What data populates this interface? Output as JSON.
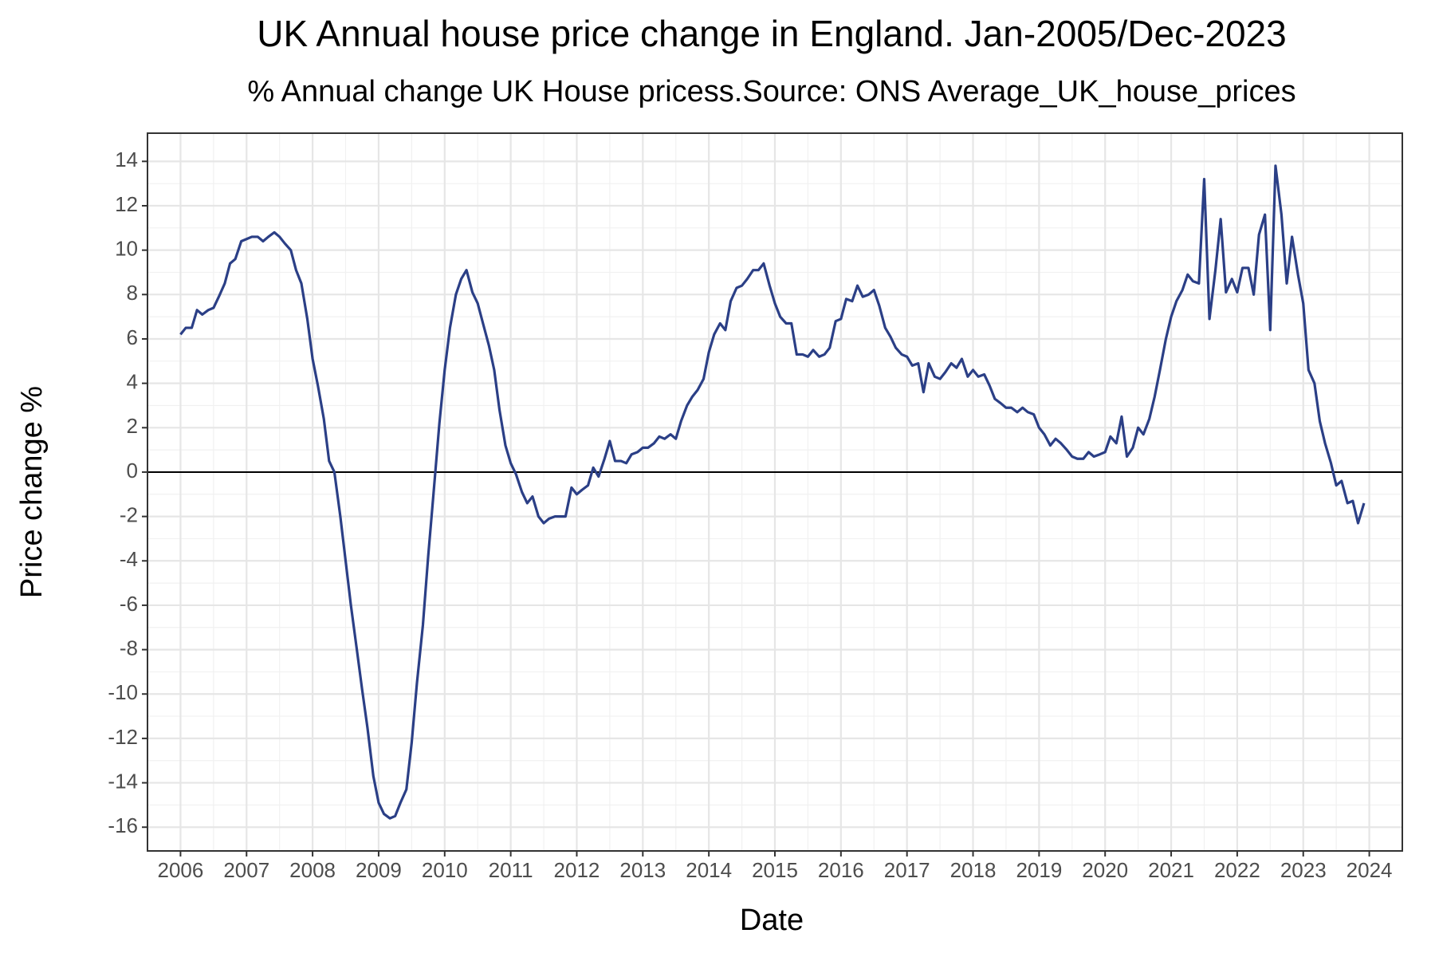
{
  "chart_data": {
    "type": "line",
    "title": "UK Annual house price change in England. Jan-2005/Dec-2023",
    "subtitle": "% Annual change UK House pricess.Source: ONS Average_UK_house_prices",
    "x_label": "Date",
    "y_label": "Price change %",
    "x": [
      2006.0,
      2006.08,
      2006.17,
      2006.25,
      2006.33,
      2006.42,
      2006.5,
      2006.58,
      2006.67,
      2006.75,
      2006.83,
      2006.92,
      2007.0,
      2007.08,
      2007.17,
      2007.25,
      2007.33,
      2007.42,
      2007.5,
      2007.58,
      2007.67,
      2007.75,
      2007.83,
      2007.92,
      2008.0,
      2008.08,
      2008.17,
      2008.25,
      2008.33,
      2008.42,
      2008.5,
      2008.58,
      2008.67,
      2008.75,
      2008.83,
      2008.92,
      2009.0,
      2009.08,
      2009.17,
      2009.25,
      2009.33,
      2009.42,
      2009.5,
      2009.58,
      2009.67,
      2009.75,
      2009.83,
      2009.92,
      2010.0,
      2010.08,
      2010.17,
      2010.25,
      2010.33,
      2010.42,
      2010.5,
      2010.58,
      2010.67,
      2010.75,
      2010.83,
      2010.92,
      2011.0,
      2011.08,
      2011.17,
      2011.25,
      2011.33,
      2011.42,
      2011.5,
      2011.58,
      2011.67,
      2011.75,
      2011.83,
      2011.92,
      2012.0,
      2012.08,
      2012.17,
      2012.25,
      2012.33,
      2012.42,
      2012.5,
      2012.58,
      2012.67,
      2012.75,
      2012.83,
      2012.92,
      2013.0,
      2013.08,
      2013.17,
      2013.25,
      2013.33,
      2013.42,
      2013.5,
      2013.58,
      2013.67,
      2013.75,
      2013.83,
      2013.92,
      2014.0,
      2014.08,
      2014.17,
      2014.25,
      2014.33,
      2014.42,
      2014.5,
      2014.58,
      2014.67,
      2014.75,
      2014.83,
      2014.92,
      2015.0,
      2015.08,
      2015.17,
      2015.25,
      2015.33,
      2015.42,
      2015.5,
      2015.58,
      2015.67,
      2015.75,
      2015.83,
      2015.92,
      2016.0,
      2016.08,
      2016.17,
      2016.25,
      2016.33,
      2016.42,
      2016.5,
      2016.58,
      2016.67,
      2016.75,
      2016.83,
      2016.92,
      2017.0,
      2017.08,
      2017.17,
      2017.25,
      2017.33,
      2017.42,
      2017.5,
      2017.58,
      2017.67,
      2017.75,
      2017.83,
      2017.92,
      2018.0,
      2018.08,
      2018.17,
      2018.25,
      2018.33,
      2018.42,
      2018.5,
      2018.58,
      2018.67,
      2018.75,
      2018.83,
      2018.92,
      2019.0,
      2019.08,
      2019.17,
      2019.25,
      2019.33,
      2019.42,
      2019.5,
      2019.58,
      2019.67,
      2019.75,
      2019.83,
      2019.92,
      2020.0,
      2020.08,
      2020.17,
      2020.25,
      2020.33,
      2020.42,
      2020.5,
      2020.58,
      2020.67,
      2020.75,
      2020.83,
      2020.92,
      2021.0,
      2021.08,
      2021.17,
      2021.25,
      2021.33,
      2021.42,
      2021.5,
      2021.58,
      2021.67,
      2021.75,
      2021.83,
      2021.92,
      2022.0,
      2022.08,
      2022.17,
      2022.25,
      2022.33,
      2022.42,
      2022.5,
      2022.58,
      2022.67,
      2022.75,
      2022.83,
      2022.92,
      2023.0,
      2023.08,
      2023.17,
      2023.25,
      2023.33,
      2023.42,
      2023.5,
      2023.58,
      2023.67,
      2023.75,
      2023.83,
      2023.92
    ],
    "series": [
      {
        "color": "#2b3f86",
        "values": [
          6.2,
          6.5,
          6.5,
          7.3,
          7.1,
          7.3,
          7.4,
          7.9,
          8.5,
          9.4,
          9.6,
          10.4,
          10.5,
          10.6,
          10.6,
          10.4,
          10.6,
          10.8,
          10.6,
          10.3,
          10.0,
          9.1,
          8.5,
          6.9,
          5.1,
          3.9,
          2.4,
          0.5,
          0.0,
          -2.0,
          -4.0,
          -6.0,
          -8.0,
          -9.8,
          -11.5,
          -13.7,
          -14.9,
          -15.4,
          -15.6,
          -15.5,
          -14.9,
          -14.3,
          -12.2,
          -9.5,
          -6.9,
          -3.8,
          -1.0,
          2.2,
          4.6,
          6.5,
          8.0,
          8.7,
          9.1,
          8.1,
          7.6,
          6.7,
          5.7,
          4.6,
          2.8,
          1.2,
          0.4,
          -0.1,
          -0.9,
          -1.4,
          -1.1,
          -2.0,
          -2.3,
          -2.1,
          -2.0,
          -2.0,
          -2.0,
          -0.7,
          -1.0,
          -0.8,
          -0.6,
          0.2,
          -0.2,
          0.6,
          1.4,
          0.5,
          0.5,
          0.4,
          0.8,
          0.9,
          1.1,
          1.1,
          1.3,
          1.6,
          1.5,
          1.7,
          1.5,
          2.3,
          3.0,
          3.4,
          3.7,
          4.2,
          5.4,
          6.2,
          6.7,
          6.4,
          7.7,
          8.3,
          8.4,
          8.7,
          9.1,
          9.1,
          9.4,
          8.4,
          7.6,
          7.0,
          6.7,
          6.7,
          5.3,
          5.3,
          5.2,
          5.5,
          5.2,
          5.3,
          5.6,
          6.8,
          6.9,
          7.8,
          7.7,
          8.4,
          7.9,
          8.0,
          8.2,
          7.5,
          6.5,
          6.1,
          5.6,
          5.3,
          5.2,
          4.8,
          4.9,
          3.6,
          4.9,
          4.3,
          4.2,
          4.5,
          4.9,
          4.7,
          5.1,
          4.3,
          4.6,
          4.3,
          4.4,
          3.9,
          3.3,
          3.1,
          2.9,
          2.9,
          2.7,
          2.9,
          2.7,
          2.6,
          2.0,
          1.7,
          1.2,
          1.5,
          1.3,
          1.0,
          0.7,
          0.6,
          0.6,
          0.9,
          0.7,
          0.8,
          0.9,
          1.6,
          1.3,
          2.5,
          0.7,
          1.1,
          2.0,
          1.7,
          2.4,
          3.4,
          4.6,
          6.0,
          7.0,
          7.7,
          8.2,
          8.9,
          8.6,
          8.5,
          13.2,
          6.9,
          9.1,
          11.4,
          8.1,
          8.7,
          8.1,
          9.2,
          9.2,
          8.0,
          10.7,
          11.6,
          6.4,
          13.8,
          11.6,
          8.5,
          10.6,
          8.9,
          7.6,
          4.6,
          4.0,
          2.3,
          1.3,
          0.4,
          -0.6,
          -0.4,
          -1.4,
          -1.3,
          -2.3,
          -1.4
        ]
      }
    ],
    "xlim": [
      2005.5,
      2024.5
    ],
    "xticks": [
      2006,
      2007,
      2008,
      2009,
      2010,
      2011,
      2012,
      2013,
      2014,
      2015,
      2016,
      2017,
      2018,
      2019,
      2020,
      2021,
      2022,
      2023,
      2024
    ],
    "ylim": [
      -17.07,
      15.27
    ],
    "yticks": [
      -16,
      -14,
      -12,
      -10,
      -8,
      -6,
      -4,
      -2,
      0,
      2,
      4,
      6,
      8,
      10,
      12,
      14
    ],
    "hline": 0,
    "grid": true
  }
}
